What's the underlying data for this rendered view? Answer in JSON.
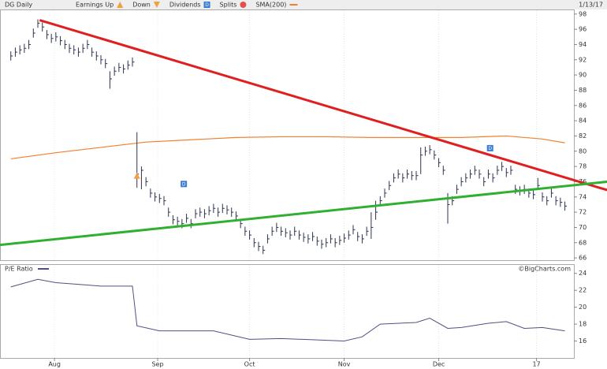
{
  "chart_data": [
    {
      "type": "ohlc",
      "title": "DG Daily",
      "date": "1/13/17",
      "color": "#2e3350",
      "legend": [
        {
          "name": "Earnings Up",
          "color": "#f0a040"
        },
        {
          "name": "Down",
          "color": "#f0a040"
        },
        {
          "name": "Dividends",
          "color": "#3a7bd5"
        },
        {
          "name": "Splits",
          "color": "#e05050"
        },
        {
          "name": "SMA(200)",
          "color": "#f08030"
        }
      ],
      "dividend_label": "D",
      "xlim": [
        -1,
        125
      ],
      "ylim": [
        65.7,
        98.6
      ],
      "yticks": [
        66,
        68,
        70,
        72,
        74,
        76,
        78,
        80,
        82,
        84,
        86,
        88,
        90,
        92,
        94,
        96,
        98
      ],
      "close": [
        92.5,
        93,
        93.3,
        93.5,
        94,
        95.5,
        96.8,
        96.3,
        95.3,
        94.8,
        95,
        94.5,
        94,
        93.5,
        93.3,
        93,
        93.5,
        94,
        93,
        92.5,
        92,
        91.5,
        89.5,
        90.5,
        91,
        90.8,
        91.3,
        91.7,
        77,
        77.5,
        76,
        74.5,
        74,
        73.8,
        73.5,
        72,
        71,
        70.8,
        70.5,
        71.2,
        70.5,
        71.8,
        72,
        71.8,
        72.2,
        72.5,
        72,
        72.5,
        72.3,
        72,
        71.5,
        70.5,
        69.5,
        69,
        68,
        67.5,
        67,
        68.5,
        69.5,
        70,
        69.5,
        69.3,
        69,
        69.5,
        69,
        68.7,
        68.5,
        68.8,
        68.2,
        67.8,
        68,
        68.5,
        68,
        68.3,
        68.6,
        69,
        69.7,
        68.8,
        68.5,
        69.5,
        70,
        72,
        73.5,
        74.5,
        75.5,
        76.5,
        77,
        76.5,
        77,
        76.8,
        76.8,
        79.5,
        80,
        80.2,
        79.5,
        78.5,
        77.5,
        73,
        73.5,
        75,
        76,
        76.5,
        77,
        77.5,
        77,
        76,
        77,
        76.5,
        77.5,
        78,
        77.2,
        77.5,
        75,
        74.8,
        75,
        74.5,
        74.3,
        75.5,
        74,
        73.5,
        74.5,
        73.5,
        73.3,
        72.8
      ],
      "high": [
        93.1,
        93.6,
        93.9,
        94.1,
        94.6,
        96.1,
        97.3,
        96.9,
        95.9,
        95.4,
        95.6,
        95.1,
        94.6,
        94.1,
        93.9,
        93.6,
        94.1,
        94.6,
        93.6,
        93.1,
        92.6,
        92.1,
        90.5,
        91.1,
        91.6,
        91.4,
        91.9,
        92.3,
        82.5,
        78,
        76.6,
        75.1,
        74.6,
        74.4,
        74.1,
        72.6,
        71.6,
        71.4,
        71.1,
        71.8,
        71.1,
        72.4,
        72.6,
        72.4,
        72.8,
        73.1,
        72.6,
        73.1,
        72.9,
        72.6,
        72.1,
        71.1,
        70.1,
        69.6,
        68.6,
        68.1,
        67.6,
        69.1,
        70.1,
        70.6,
        70.1,
        69.9,
        69.6,
        70.1,
        69.6,
        69.3,
        69.1,
        69.4,
        68.8,
        68.4,
        68.6,
        69.1,
        68.6,
        68.9,
        69.2,
        69.6,
        70.3,
        69.4,
        69.1,
        70.1,
        72,
        73.5,
        74.1,
        75.1,
        76.1,
        77.1,
        77.6,
        77.1,
        77.6,
        77.4,
        77.4,
        80.5,
        80.6,
        80.8,
        80.1,
        79.1,
        78.1,
        74.5,
        74.1,
        75.6,
        76.6,
        77.1,
        77.6,
        78.1,
        77.6,
        76.6,
        77.6,
        77.1,
        78.1,
        78.6,
        77.8,
        78.1,
        75.6,
        75.4,
        75.6,
        75.1,
        74.9,
        76.5,
        74.6,
        74.1,
        75.1,
        74.1,
        73.9,
        73.4
      ],
      "low": [
        91.9,
        92.4,
        92.7,
        92.9,
        93.4,
        94.9,
        96.2,
        95.7,
        94.7,
        94.2,
        94.4,
        93.9,
        93.4,
        92.9,
        92.7,
        92.4,
        92.9,
        93.4,
        92.4,
        91.9,
        91.4,
        90.9,
        88.2,
        89.9,
        90.4,
        90.2,
        90.7,
        91.1,
        75.2,
        75,
        75.4,
        73.9,
        73.4,
        73.2,
        72.9,
        71.4,
        70.4,
        70.2,
        69.9,
        70.6,
        69.9,
        71.2,
        71.4,
        71.2,
        71.6,
        71.9,
        71.4,
        71.9,
        71.7,
        71.4,
        70.9,
        69.9,
        68.9,
        68.4,
        67.4,
        66.9,
        66.5,
        67.9,
        68.9,
        69.4,
        68.9,
        68.7,
        68.4,
        68.9,
        68.4,
        68.1,
        67.9,
        68.2,
        67.6,
        67.2,
        67.4,
        67.9,
        67.4,
        67.7,
        68,
        68.4,
        69.1,
        68.2,
        67.9,
        68.9,
        68.5,
        71,
        72.9,
        73.9,
        74.9,
        75.9,
        76.4,
        75.9,
        76.4,
        76.2,
        76.2,
        77,
        79.4,
        79.6,
        78.9,
        77.9,
        76.9,
        70.5,
        72.9,
        74.4,
        75.4,
        75.9,
        76.4,
        76.9,
        76.4,
        75.4,
        76.4,
        75.9,
        76.9,
        77.4,
        76.6,
        76.9,
        74.4,
        74.2,
        74.4,
        73.9,
        73.7,
        74.9,
        73.4,
        72.9,
        73.9,
        72.9,
        72.7,
        72.2
      ],
      "sma": {
        "color": "#f08030",
        "x": [
          0,
          10,
          20,
          30,
          40,
          50,
          60,
          70,
          80,
          90,
          100,
          110,
          118,
          123
        ],
        "values": [
          79,
          79.8,
          80.5,
          81.2,
          81.5,
          81.8,
          81.9,
          81.9,
          81.8,
          81.8,
          81.8,
          82,
          81.6,
          81.1
        ]
      },
      "trendlines": [
        {
          "color": "#e02020",
          "x": [
            6.4,
            132.4
          ],
          "values": [
            97.2,
            74.9
          ]
        },
        {
          "color": "#30b030",
          "x": [
            -2.4,
            132.4
          ],
          "values": [
            67.7,
            76
          ]
        }
      ],
      "events": [
        {
          "type": "earnings",
          "x": 28,
          "y": 76.8
        },
        {
          "type": "dividend",
          "x": 38.4,
          "y": 75.7
        },
        {
          "type": "dividend",
          "x": 106.4,
          "y": 80.4
        }
      ]
    },
    {
      "type": "line",
      "title": "P/E Ratio",
      "credit": "©BigCharts.com",
      "color": "#505080",
      "xlim": [
        -1,
        125
      ],
      "ylim": [
        14,
        25
      ],
      "yticks": [
        16,
        18,
        20,
        22,
        24
      ],
      "xticks": [
        {
          "value": 9.7,
          "label": "Aug"
        },
        {
          "value": 32.6,
          "label": "Sep"
        },
        {
          "value": 53,
          "label": "Oct"
        },
        {
          "value": 74,
          "label": "Nov"
        },
        {
          "value": 95,
          "label": "Dec"
        },
        {
          "value": 116.7,
          "label": "17"
        }
      ],
      "x": [
        0,
        6,
        10,
        15,
        20,
        27,
        28,
        33,
        45,
        53,
        60,
        74,
        78,
        82,
        90,
        93,
        97,
        100,
        106,
        110,
        114,
        118,
        123
      ],
      "values": [
        22.4,
        23.3,
        22.9,
        22.7,
        22.5,
        22.5,
        17.8,
        17.2,
        17.2,
        16.2,
        16.3,
        16,
        16.5,
        18,
        18.2,
        18.7,
        17.5,
        17.6,
        18.1,
        18.3,
        17.5,
        17.6,
        17.2
      ]
    }
  ]
}
